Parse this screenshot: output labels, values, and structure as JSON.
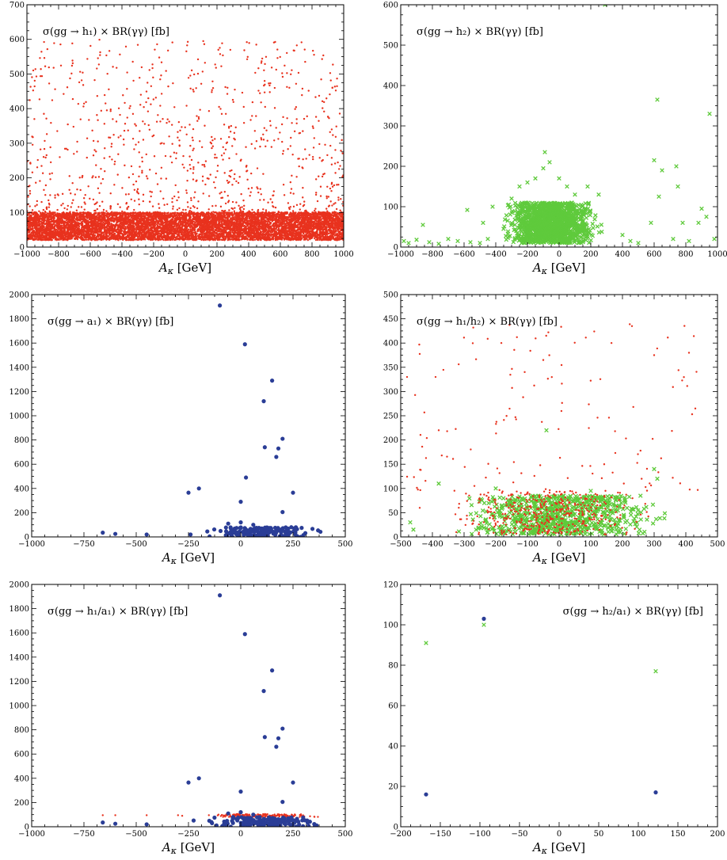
{
  "colors": {
    "red": "#e8321e",
    "green": "#5fca3c",
    "blue": "#2a3d96"
  },
  "chart_data": [
    {
      "type": "scatter",
      "title": "σ(gg → h₁) × BR(γγ) [fb]",
      "title_position": "top-left",
      "xlabel": "A_κ [GeV]",
      "xlim": [
        -1000,
        1000
      ],
      "ylim": [
        0,
        700
      ],
      "xticks": [
        -1000,
        -800,
        -600,
        -400,
        -200,
        0,
        200,
        400,
        600,
        800,
        1000
      ],
      "yticks": [
        0,
        100,
        200,
        300,
        400,
        500,
        600,
        700
      ],
      "series": [
        {
          "marker": "dot",
          "color": "red",
          "x_range": [
            -1000,
            1000
          ],
          "dense_band": [
            20,
            100
          ],
          "dense_count": 9000,
          "sparse_max": 600,
          "sparse_count": 900,
          "seed": 11
        }
      ]
    },
    {
      "type": "scatter",
      "title": "σ(gg → h₂) × BR(γγ) [fb]",
      "title_position": "top-left",
      "xlabel": "A_κ [GeV]",
      "xlim": [
        -1000,
        1000
      ],
      "ylim": [
        0,
        600
      ],
      "xticks": [
        -1000,
        -800,
        -600,
        -400,
        -200,
        0,
        200,
        400,
        600,
        800,
        1000
      ],
      "yticks": [
        0,
        100,
        200,
        300,
        400,
        500,
        600
      ],
      "series": [
        {
          "marker": "cross",
          "color": "green",
          "cluster": {
            "x": [
              -400,
              300
            ],
            "y": [
              10,
              110
            ],
            "count": 1400
          },
          "points": [
            [
              -980,
              15
            ],
            [
              -950,
              10
            ],
            [
              -900,
              18
            ],
            [
              -860,
              55
            ],
            [
              -820,
              12
            ],
            [
              -760,
              8
            ],
            [
              -700,
              20
            ],
            [
              -640,
              15
            ],
            [
              -580,
              92
            ],
            [
              -560,
              12
            ],
            [
              -500,
              10
            ],
            [
              -450,
              20
            ],
            [
              -480,
              60
            ],
            [
              -420,
              100
            ],
            [
              -300,
              120
            ],
            [
              -250,
              150
            ],
            [
              -200,
              160
            ],
            [
              -150,
              170
            ],
            [
              -100,
              195
            ],
            [
              -90,
              235
            ],
            [
              -60,
              210
            ],
            [
              0,
              170
            ],
            [
              50,
              150
            ],
            [
              100,
              130
            ],
            [
              180,
              150
            ],
            [
              250,
              130
            ],
            [
              290,
              600
            ],
            [
              400,
              30
            ],
            [
              450,
              15
            ],
            [
              500,
              10
            ],
            [
              580,
              60
            ],
            [
              600,
              215
            ],
            [
              620,
              365
            ],
            [
              650,
              190
            ],
            [
              630,
              125
            ],
            [
              720,
              20
            ],
            [
              740,
              200
            ],
            [
              750,
              150
            ],
            [
              780,
              60
            ],
            [
              820,
              15
            ],
            [
              880,
              60
            ],
            [
              900,
              95
            ],
            [
              930,
              75
            ],
            [
              950,
              330
            ],
            [
              980,
              20
            ]
          ]
        }
      ]
    },
    {
      "type": "scatter",
      "title": "σ(gg → a₁) × BR(γγ) [fb]",
      "title_position": "top-left",
      "xlabel": "A_κ [GeV]",
      "xlim": [
        -1000,
        500
      ],
      "ylim": [
        0,
        2000
      ],
      "xticks": [
        -1000,
        -750,
        -500,
        -250,
        0,
        250,
        500
      ],
      "yticks": [
        0,
        200,
        400,
        600,
        800,
        1000,
        1200,
        1400,
        1600,
        1800,
        2000
      ],
      "series": [
        {
          "marker": "dot-large",
          "color": "blue",
          "cluster": {
            "x": [
              -250,
              450
            ],
            "y": [
              0,
              80
            ],
            "count": 160
          },
          "points": [
            [
              -660,
              35
            ],
            [
              -600,
              25
            ],
            [
              -450,
              20
            ],
            [
              -250,
              365
            ],
            [
              -200,
              400
            ],
            [
              -100,
              1910
            ],
            [
              0,
              290
            ],
            [
              20,
              1590
            ],
            [
              25,
              490
            ],
            [
              110,
              1120
            ],
            [
              115,
              740
            ],
            [
              150,
              1290
            ],
            [
              170,
              660
            ],
            [
              180,
              730
            ],
            [
              200,
              810
            ],
            [
              200,
              205
            ],
            [
              250,
              365
            ],
            [
              -240,
              20
            ],
            [
              -160,
              45
            ],
            [
              -60,
              110
            ],
            [
              0,
              120
            ],
            [
              60,
              100
            ]
          ]
        }
      ]
    },
    {
      "type": "scatter",
      "title": "σ(gg → h₁/h₂) × BR(γγ) [fb]",
      "title_position": "top-left",
      "xlabel": "A_κ [GeV]",
      "xlim": [
        -500,
        500
      ],
      "ylim": [
        0,
        500
      ],
      "xticks": [
        -500,
        -400,
        -300,
        -200,
        -100,
        0,
        100,
        200,
        300,
        400,
        500
      ],
      "yticks": [
        0,
        50,
        100,
        150,
        200,
        250,
        300,
        350,
        400,
        450,
        500
      ],
      "series": [
        {
          "marker": "cross",
          "color": "green",
          "cluster": {
            "x": [
              -400,
              400
            ],
            "y": [
              5,
              85
            ],
            "count": 800
          },
          "points": [
            [
              -470,
              30
            ],
            [
              -460,
              15
            ],
            [
              -380,
              110
            ],
            [
              -40,
              220
            ],
            [
              300,
              140
            ],
            [
              310,
              120
            ],
            [
              -200,
              100
            ],
            [
              100,
              95
            ]
          ]
        },
        {
          "marker": "dot",
          "color": "red",
          "cluster": {
            "x": [
              -420,
              350
            ],
            "y": [
              5,
              95
            ],
            "count": 420
          },
          "sparse": {
            "x": [
              -480,
              440
            ],
            "y": [
              90,
              440
            ],
            "count": 130
          },
          "points": [
            [
              -480,
              330
            ],
            [
              -440,
              60
            ],
            [
              -390,
              330
            ],
            [
              -380,
              220
            ],
            [
              -50,
              365
            ],
            [
              230,
              435
            ],
            [
              300,
              375
            ],
            [
              410,
              380
            ],
            [
              430,
              265
            ]
          ]
        }
      ]
    },
    {
      "type": "scatter",
      "title": "σ(gg → h₁/a₁) × BR(γγ) [fb]",
      "title_position": "top-left",
      "xlabel": "A_κ [GeV]",
      "xlim": [
        -1000,
        500
      ],
      "ylim": [
        0,
        2000
      ],
      "xticks": [
        -1000,
        -750,
        -500,
        -250,
        0,
        250,
        500
      ],
      "yticks": [
        0,
        200,
        400,
        600,
        800,
        1000,
        1200,
        1400,
        1600,
        1800,
        2000
      ],
      "series": [
        {
          "marker": "dot",
          "color": "red",
          "cluster": {
            "x": [
              -250,
              450
            ],
            "y": [
              80,
              105
            ],
            "count": 170
          },
          "points": [
            [
              -660,
              95
            ],
            [
              -600,
              95
            ],
            [
              -450,
              95
            ],
            [
              -300,
              95
            ],
            [
              -280,
              90
            ]
          ]
        },
        {
          "marker": "dot-large",
          "color": "blue",
          "cluster": {
            "x": [
              -250,
              450
            ],
            "y": [
              0,
              80
            ],
            "count": 160
          },
          "points": [
            [
              -660,
              35
            ],
            [
              -600,
              25
            ],
            [
              -450,
              20
            ],
            [
              -250,
              365
            ],
            [
              -200,
              400
            ],
            [
              -100,
              1910
            ],
            [
              0,
              290
            ],
            [
              20,
              1590
            ],
            [
              110,
              1120
            ],
            [
              115,
              740
            ],
            [
              150,
              1290
            ],
            [
              170,
              660
            ],
            [
              180,
              730
            ],
            [
              200,
              810
            ],
            [
              200,
              205
            ],
            [
              250,
              365
            ],
            [
              -60,
              110
            ],
            [
              0,
              120
            ],
            [
              60,
              100
            ]
          ]
        }
      ]
    },
    {
      "type": "scatter",
      "title": "σ(gg → h₂/a₁) × BR(γγ) [fb]",
      "title_position": "top-right",
      "xlabel": "A_κ [GeV]",
      "xlim": [
        -200,
        200
      ],
      "ylim": [
        0,
        120
      ],
      "xticks": [
        -200,
        -150,
        -100,
        -50,
        0,
        50,
        100,
        150,
        200
      ],
      "yticks": [
        0,
        20,
        40,
        60,
        80,
        100,
        120
      ],
      "series": [
        {
          "marker": "cross",
          "color": "green",
          "points": [
            [
              -168,
              91
            ],
            [
              -95,
              100
            ],
            [
              122,
              77
            ]
          ]
        },
        {
          "marker": "dot-large",
          "color": "blue",
          "points": [
            [
              -168,
              16
            ],
            [
              -95,
              103
            ],
            [
              122,
              17
            ]
          ]
        }
      ]
    }
  ]
}
